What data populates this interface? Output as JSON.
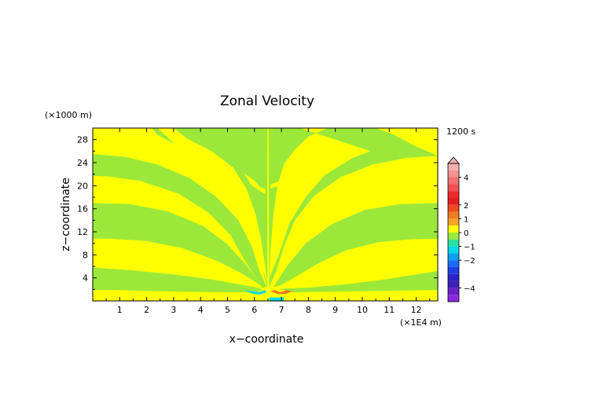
{
  "chart_data": {
    "type": "heatmap",
    "title": "Zonal Velocity",
    "xlabel": "x−coordinate",
    "ylabel": "z−coordinate",
    "x_unit": "(×1E4 m)",
    "y_unit": "(×1000 m)",
    "time_label": "1200 s",
    "xlim": [
      0,
      12.8
    ],
    "ylim": [
      0,
      30
    ],
    "xticks": [
      "1",
      "2",
      "3",
      "4",
      "5",
      "6",
      "7",
      "8",
      "9",
      "10",
      "11",
      "12"
    ],
    "yticks": [
      "4",
      "8",
      "12",
      "16",
      "20",
      "24",
      "28"
    ],
    "colorbar": {
      "levels": [
        {
          "lo": 4.5,
          "hi": 5.0,
          "color": "#f4b0b0"
        },
        {
          "lo": 4.0,
          "hi": 4.5,
          "color": "#f49090"
        },
        {
          "lo": 3.5,
          "hi": 4.0,
          "color": "#f07070"
        },
        {
          "lo": 3.0,
          "hi": 3.5,
          "color": "#f05050"
        },
        {
          "lo": 2.5,
          "hi": 3.0,
          "color": "#ee2828"
        },
        {
          "lo": 2.0,
          "hi": 2.5,
          "color": "#e02020"
        },
        {
          "lo": 1.5,
          "hi": 2.0,
          "color": "#f04a1e"
        },
        {
          "lo": 1.0,
          "hi": 1.5,
          "color": "#f07a20"
        },
        {
          "lo": 0.5,
          "hi": 1.0,
          "color": "#f5a623"
        },
        {
          "lo": 0.0,
          "hi": 0.5,
          "color": "#ffff00"
        },
        {
          "lo": -0.5,
          "hi": 0.0,
          "color": "#9be83a"
        },
        {
          "lo": -1.0,
          "hi": -0.5,
          "color": "#2ee0a0"
        },
        {
          "lo": -1.5,
          "hi": -1.0,
          "color": "#00d8e6"
        },
        {
          "lo": -2.0,
          "hi": -1.5,
          "color": "#0aa0f0"
        },
        {
          "lo": -2.5,
          "hi": -2.0,
          "color": "#1a6cff"
        },
        {
          "lo": -3.0,
          "hi": -2.5,
          "color": "#1f3fe6"
        },
        {
          "lo": -3.5,
          "hi": -3.0,
          "color": "#2a22c8"
        },
        {
          "lo": -4.0,
          "hi": -3.5,
          "color": "#4020b8"
        },
        {
          "lo": -4.5,
          "hi": -4.0,
          "color": "#6a22c8"
        },
        {
          "lo": -5.0,
          "hi": -4.5,
          "color": "#8a2ae0"
        }
      ],
      "tick_labels": [
        "4",
        "2",
        "1",
        "0",
        "−1",
        "−2",
        "−4"
      ],
      "tick_values": [
        4,
        2,
        1,
        0,
        -1,
        -2,
        -4
      ],
      "range": [
        -5,
        5
      ]
    },
    "field": {
      "background_color": "#ffff00",
      "band_color": "#9be83a",
      "description_values": "positive/negative alternating bands"
    }
  }
}
